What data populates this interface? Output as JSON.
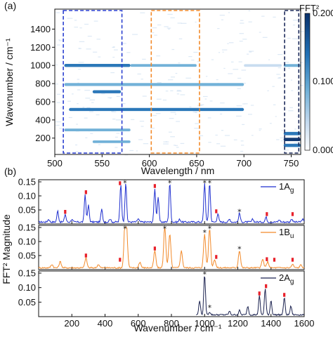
{
  "panel_a": {
    "panel_label": "(a)",
    "xlabel": "Wavelength / nm",
    "ylabel": "Wavenumber / cm⁻¹",
    "colorbar_label": "FFT²",
    "colorbar_ticks": [
      "0.200",
      "0.100",
      "0.000"
    ]
  },
  "panel_b": {
    "panel_label": "(b)",
    "xlabel": "Wavenumber / cm⁻¹",
    "ylabel": "FFT² Magnitude"
  },
  "chart_data": [
    {
      "type": "heatmap",
      "title": "",
      "xlabel": "Wavelength / nm",
      "ylabel": "Wavenumber / cm⁻¹",
      "xlim": [
        500,
        760
      ],
      "ylim": [
        20,
        1620
      ],
      "x_ticks": [
        500,
        550,
        600,
        650,
        700,
        750
      ],
      "y_ticks": [
        200,
        400,
        600,
        800,
        1000,
        1200,
        1400
      ],
      "colorbar": {
        "label": "FFT²",
        "range": [
          0.0,
          0.2
        ],
        "ticks": [
          "0.000",
          "0.100",
          "0.200"
        ],
        "colormap": [
          "#ffffff",
          "#c6dbef",
          "#6baed6",
          "#2171b5",
          "#08306b"
        ]
      },
      "bands": [
        {
          "y": 1000,
          "x_start": 510,
          "x_end": 580,
          "intensity": 0.7
        },
        {
          "y": 1000,
          "x_start": 580,
          "x_end": 650,
          "intensity": 0.45
        },
        {
          "y": 1000,
          "x_start": 700,
          "x_end": 740,
          "intensity": 0.35
        },
        {
          "y": 790,
          "x_start": 510,
          "x_end": 700,
          "intensity": 0.6
        },
        {
          "y": 710,
          "x_start": 540,
          "x_end": 570,
          "intensity": 0.7
        },
        {
          "y": 515,
          "x_start": 515,
          "x_end": 700,
          "intensity": 0.65
        },
        {
          "y": 290,
          "x_start": 510,
          "x_end": 580,
          "intensity": 0.4
        },
        {
          "y": 160,
          "x_start": 540,
          "x_end": 580,
          "intensity": 0.4
        },
        {
          "y": 1000,
          "x_start": 742,
          "x_end": 760,
          "intensity": 0.5
        },
        {
          "y": 250,
          "x_start": 742,
          "x_end": 760,
          "intensity": 0.85
        },
        {
          "y": 185,
          "x_start": 742,
          "x_end": 760,
          "intensity": 0.9
        },
        {
          "y": 120,
          "x_start": 742,
          "x_end": 760,
          "intensity": 0.8
        }
      ],
      "highlight_boxes": [
        {
          "x": [
            509,
            571
          ],
          "y": [
            20,
            1620
          ],
          "color": "#2a3fd0"
        },
        {
          "x": [
            602,
            653
          ],
          "y": [
            20,
            1620
          ],
          "color": "#f28a2a"
        },
        {
          "x": [
            743,
            758
          ],
          "y": [
            20,
            1620
          ],
          "color": "#1c2a5a"
        }
      ]
    },
    {
      "type": "line",
      "title": "",
      "xlabel": "",
      "ylabel": "",
      "xlim": [
        0,
        1600
      ],
      "ylim": [
        0,
        0.15
      ],
      "y_ticks": [
        "0.05",
        "0.10",
        "0.15"
      ],
      "series": [
        {
          "name": "1A",
          "name_sub": "g",
          "color": "#1f2fcf"
        }
      ],
      "peaks": [
        [
          60,
          0.01
        ],
        [
          115,
          0.04
        ],
        [
          160,
          0.028
        ],
        [
          200,
          0.01
        ],
        [
          280,
          0.098
        ],
        [
          300,
          0.06
        ],
        [
          380,
          0.045
        ],
        [
          430,
          0.012
        ],
        [
          495,
          0.135
        ],
        [
          525,
          0.14
        ],
        [
          600,
          0.012
        ],
        [
          700,
          0.12
        ],
        [
          720,
          0.09
        ],
        [
          790,
          0.14
        ],
        [
          850,
          0.01
        ],
        [
          1000,
          0.14
        ],
        [
          1030,
          0.14
        ],
        [
          1080,
          0.03
        ],
        [
          1150,
          0.01
        ],
        [
          1210,
          0.032
        ],
        [
          1290,
          0.01
        ],
        [
          1370,
          0.018
        ],
        [
          1450,
          0.008
        ],
        [
          1525,
          0.012
        ],
        [
          1590,
          0.01
        ]
      ],
      "peak_widths": 7,
      "noise": 0.006,
      "red_markers": [
        160,
        285,
        490,
        700,
        1070,
        1375,
        1530
      ],
      "star_markers": [
        520,
        790,
        1000,
        1030,
        1210
      ]
    },
    {
      "type": "line",
      "title": "",
      "xlabel": "",
      "ylabel": "",
      "xlim": [
        0,
        1600
      ],
      "ylim": [
        0,
        0.15
      ],
      "y_ticks": [
        "0.05",
        "0.10",
        "0.15"
      ],
      "series": [
        {
          "name": "1B",
          "name_sub": "u",
          "color": "#f28a2a"
        }
      ],
      "peaks": [
        [
          80,
          0.012
        ],
        [
          130,
          0.022
        ],
        [
          285,
          0.035
        ],
        [
          360,
          0.012
        ],
        [
          520,
          0.145
        ],
        [
          530,
          0.12
        ],
        [
          610,
          0.02
        ],
        [
          700,
          0.06
        ],
        [
          760,
          0.15
        ],
        [
          790,
          0.12
        ],
        [
          860,
          0.06
        ],
        [
          1000,
          0.12
        ],
        [
          1030,
          0.14
        ],
        [
          1060,
          0.03
        ],
        [
          1210,
          0.062
        ],
        [
          1350,
          0.03
        ],
        [
          1380,
          0.022
        ],
        [
          1530,
          0.012
        ],
        [
          1580,
          0.01
        ]
      ],
      "peak_widths": 9,
      "noise": 0.005,
      "red_markers": [
        285,
        490,
        700,
        1070,
        1375,
        1420,
        1530
      ],
      "star_markers": [
        520,
        760,
        1000,
        1030,
        1210
      ]
    },
    {
      "type": "line",
      "title": "",
      "xlabel": "Wavenumber / cm⁻¹",
      "ylabel": "",
      "xlim": [
        0,
        1600
      ],
      "ylim": [
        0,
        0.15
      ],
      "x_ticks": [
        200,
        400,
        600,
        800,
        1000,
        1200,
        1400,
        1600
      ],
      "y_ticks": [
        "0.05",
        "0.10",
        "0.15"
      ],
      "series": [
        {
          "name": "2A",
          "name_sub": "g",
          "color": "#1c2350"
        }
      ],
      "x_start": 950,
      "peaks": [
        [
          970,
          0.05
        ],
        [
          1000,
          0.14
        ],
        [
          1030,
          0.01
        ],
        [
          1150,
          0.012
        ],
        [
          1210,
          0.015
        ],
        [
          1260,
          0.03
        ],
        [
          1330,
          0.065
        ],
        [
          1365,
          0.09
        ],
        [
          1400,
          0.05
        ],
        [
          1480,
          0.06
        ],
        [
          1520,
          0.03
        ]
      ],
      "peak_widths": 7,
      "noise": 0.005,
      "red_markers": [
        1330,
        1370,
        1480
      ],
      "star_markers": [
        1000,
        1030
      ]
    }
  ]
}
